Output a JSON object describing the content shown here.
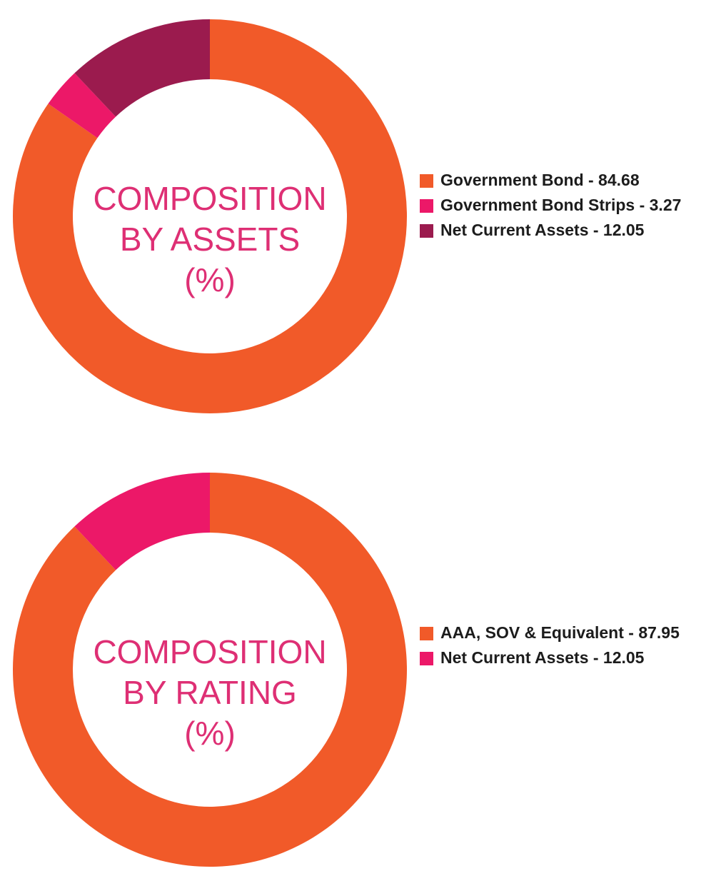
{
  "chart_data": [
    {
      "type": "pie",
      "title_lines": [
        "COMPOSITION",
        "BY ASSETS",
        "(%)"
      ],
      "categories": [
        "Government Bond",
        "Government Bond Strips",
        "Net Current Assets"
      ],
      "values": [
        84.68,
        3.27,
        12.05
      ],
      "colors": [
        "#f15a29",
        "#ec1868",
        "#9b1b4e"
      ],
      "legend_labels": [
        "Government Bond - 84.68",
        "Government Bond Strips - 3.27",
        "Net Current Assets - 12.05"
      ],
      "legend_position": "right"
    },
    {
      "type": "pie",
      "title_lines": [
        "COMPOSITION",
        "BY RATING",
        "(%)"
      ],
      "categories": [
        "AAA, SOV & Equivalent",
        "Net Current Assets"
      ],
      "values": [
        87.95,
        12.05
      ],
      "colors": [
        "#f15a29",
        "#ec1868"
      ],
      "legend_labels": [
        "AAA, SOV & Equivalent - 87.95",
        "Net Current Assets - 12.05"
      ],
      "legend_position": "right"
    }
  ]
}
